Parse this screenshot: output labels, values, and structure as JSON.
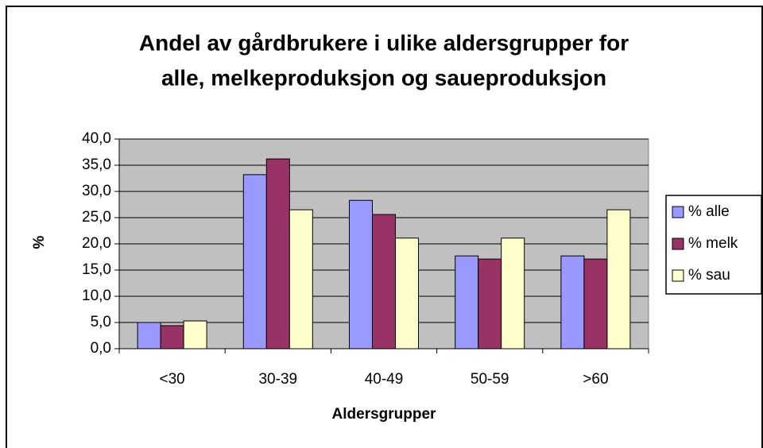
{
  "chart_data": {
    "type": "bar",
    "title": [
      "Andel av gårdbrukere i ulike aldersgrupper for",
      "alle, melkeproduksjon og saueproduksjon"
    ],
    "x_label": "Aldersgrupper",
    "y_label": "%",
    "categories": [
      "<30",
      "30-39",
      "40-49",
      "50-59",
      ">60"
    ],
    "series": [
      {
        "name": "% alle",
        "color": "#9999ff",
        "values": [
          5.0,
          33.2,
          28.3,
          17.7,
          17.7
        ]
      },
      {
        "name": "% melk",
        "color": "#993366",
        "values": [
          4.4,
          36.2,
          25.6,
          17.1,
          17.1
        ]
      },
      {
        "name": "% sau",
        "color": "#ffffcc",
        "values": [
          5.3,
          26.5,
          21.1,
          21.1,
          26.5
        ]
      }
    ],
    "ylim": [
      0,
      40
    ],
    "yticks": [
      {
        "value": 0,
        "label": "0,0"
      },
      {
        "value": 5,
        "label": "5,0"
      },
      {
        "value": 10,
        "label": "10,0"
      },
      {
        "value": 15,
        "label": "15,0"
      },
      {
        "value": 20,
        "label": "20,0"
      },
      {
        "value": 25,
        "label": "25,0"
      },
      {
        "value": 30,
        "label": "30,0"
      },
      {
        "value": 35,
        "label": "35,0"
      },
      {
        "value": 40,
        "label": "40,0"
      }
    ],
    "grid": true,
    "legend": "right",
    "plot_background": "#c0c0c0"
  }
}
